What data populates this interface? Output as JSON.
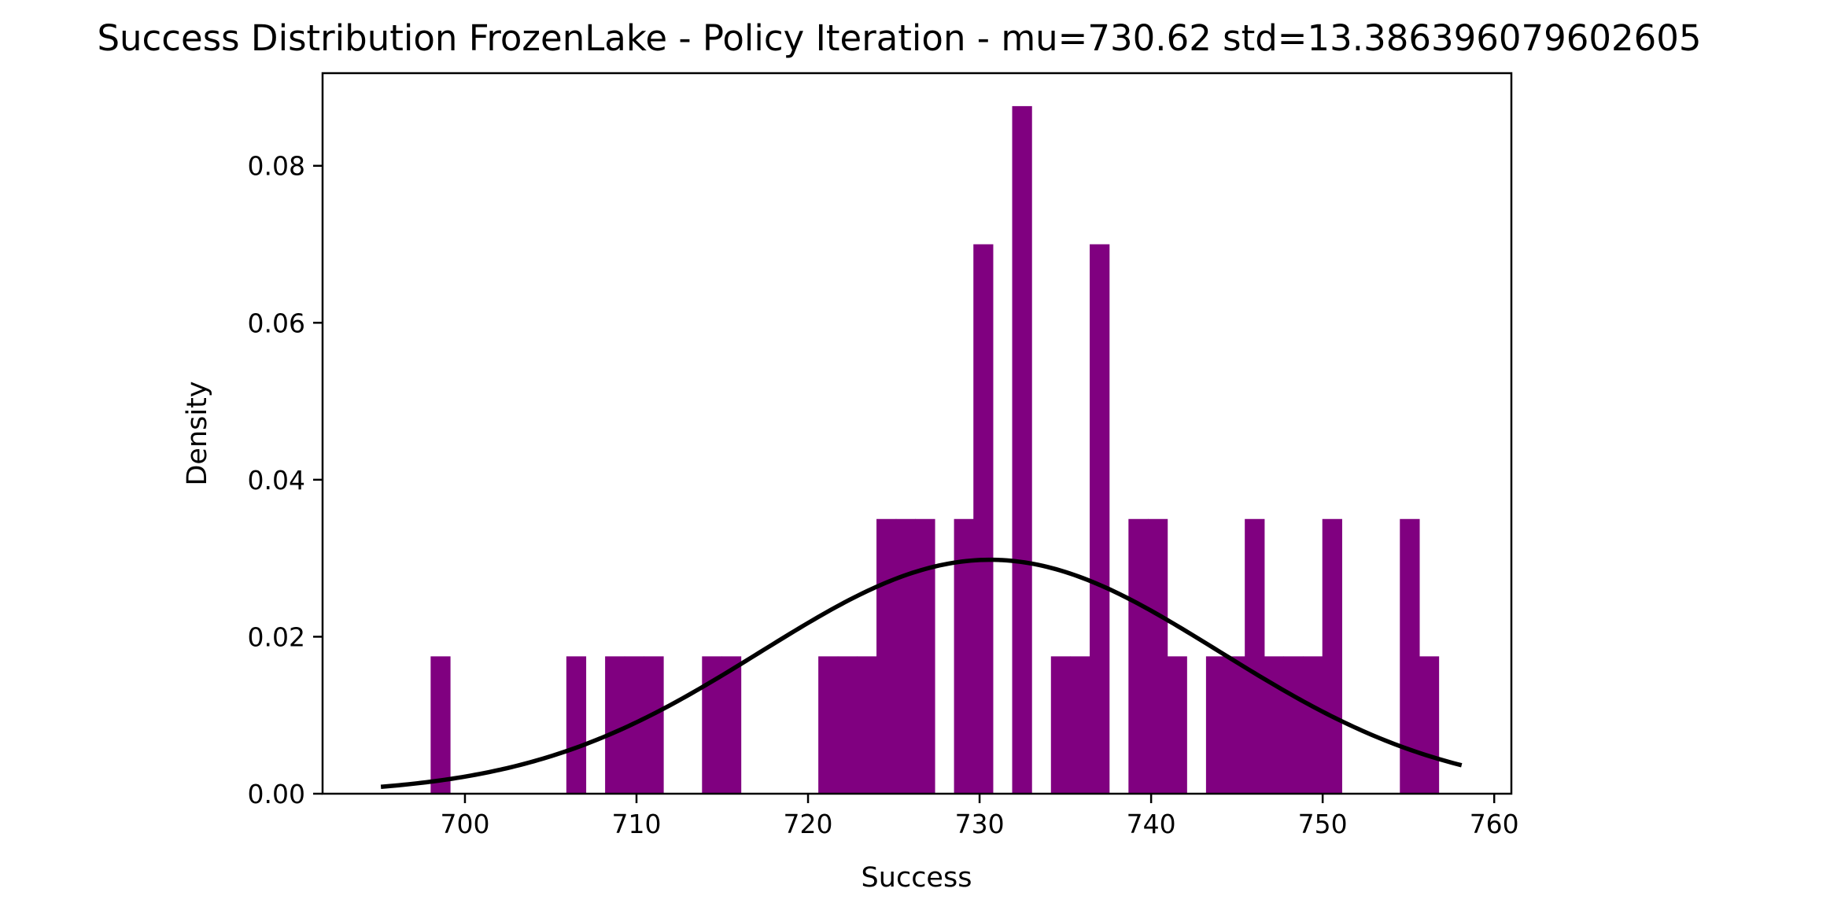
{
  "chart_data": {
    "type": "bar",
    "title": "Success Distribution FrozenLake - Policy Iteration - mu=730.62 std=13.386396079602605",
    "xlabel": "Success",
    "ylabel": "Density",
    "xlim": [
      691.7,
      761.0
    ],
    "ylim": [
      0,
      0.0918
    ],
    "x_ticks": [
      700,
      710,
      720,
      730,
      740,
      750,
      760
    ],
    "y_ticks": [
      0.0,
      0.02,
      0.04,
      0.06,
      0.08
    ],
    "y_tick_labels": [
      "0.00",
      "0.02",
      "0.04",
      "0.06",
      "0.08"
    ],
    "bar_color": "#800080",
    "curve_color": "#000000",
    "bins": {
      "start": 698.0,
      "width": 1.13,
      "values": [
        0.0175,
        0,
        0,
        0,
        0,
        0,
        0,
        0.0175,
        0,
        0.0175,
        0.0175,
        0.0175,
        0,
        0,
        0.0175,
        0.0175,
        0,
        0,
        0,
        0,
        0.0175,
        0.0175,
        0.0175,
        0.035,
        0.035,
        0.035,
        0,
        0.035,
        0.07,
        0,
        0.0876,
        0,
        0.0175,
        0.0175,
        0.07,
        0,
        0.035,
        0.035,
        0.0175,
        0,
        0.0175,
        0.0175,
        0.035,
        0.0175,
        0.0175,
        0.0175,
        0.035,
        0,
        0,
        0,
        0.035,
        0.0175
      ]
    },
    "fit": {
      "type": "normal",
      "mu": 730.62,
      "std": 13.386396079602605,
      "x_range": [
        695.1,
        758.1
      ]
    },
    "grid": false,
    "legend": "none"
  }
}
